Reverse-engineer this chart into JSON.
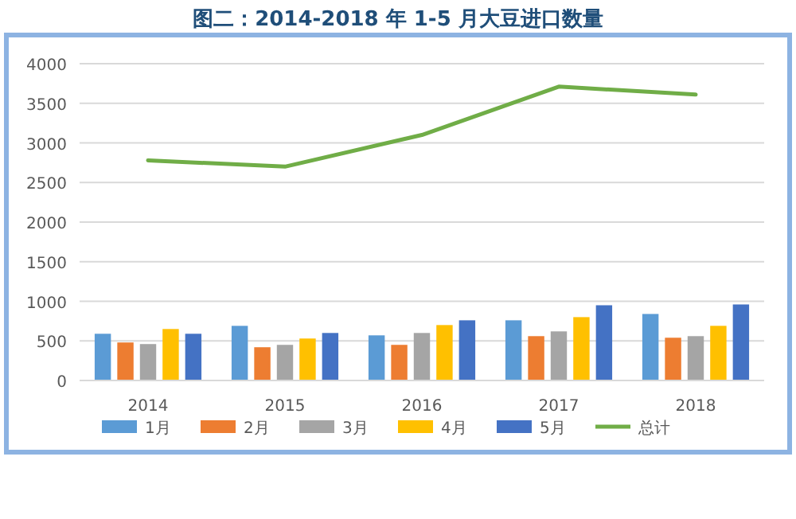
{
  "chart_data": {
    "type": "bar",
    "title": "图二：2014-2018 年 1-5 月大豆进口数量",
    "categories": [
      "2014",
      "2015",
      "2016",
      "2017",
      "2018"
    ],
    "series": [
      {
        "name": "1月",
        "color": "#5b9bd5",
        "values": [
          590,
          690,
          570,
          760,
          840
        ]
      },
      {
        "name": "2月",
        "color": "#ed7d31",
        "values": [
          480,
          420,
          450,
          560,
          540
        ]
      },
      {
        "name": "3月",
        "color": "#a5a5a5",
        "values": [
          460,
          450,
          600,
          620,
          560
        ]
      },
      {
        "name": "4月",
        "color": "#ffc000",
        "values": [
          650,
          530,
          700,
          800,
          690
        ]
      },
      {
        "name": "5月",
        "color": "#4472c4",
        "values": [
          590,
          600,
          760,
          950,
          960
        ]
      },
      {
        "name": "总计",
        "type": "line",
        "color": "#70ad47",
        "values": [
          2780,
          2700,
          3100,
          3710,
          3610
        ]
      }
    ],
    "ylim": [
      0,
      4000
    ],
    "yticks": [
      0,
      500,
      1000,
      1500,
      2000,
      2500,
      3000,
      3500,
      4000
    ],
    "grid": "y",
    "legend": "bottom"
  }
}
